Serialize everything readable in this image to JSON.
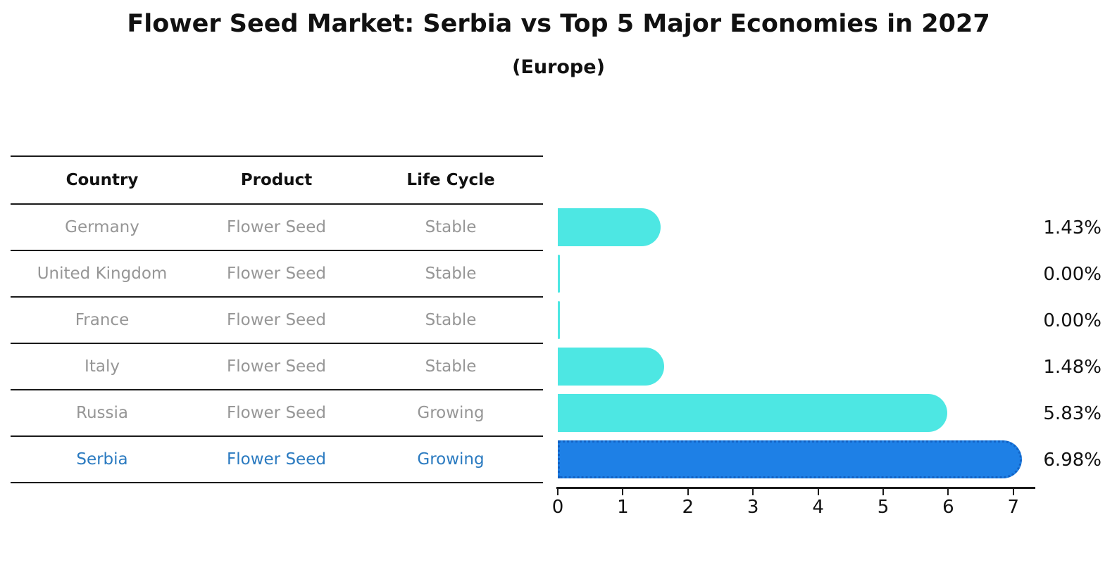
{
  "title": "Flower Seed Market: Serbia vs Top 5 Major Economies in 2027",
  "subtitle": "(Europe)",
  "table": {
    "headers": [
      "Country",
      "Product",
      "Life Cycle"
    ],
    "rows": [
      {
        "country": "Germany",
        "product": "Flower Seed",
        "life_cycle": "Stable",
        "highlight": false
      },
      {
        "country": "United Kingdom",
        "product": "Flower Seed",
        "life_cycle": "Stable",
        "highlight": false
      },
      {
        "country": "France",
        "product": "Flower Seed",
        "life_cycle": "Stable",
        "highlight": false
      },
      {
        "country": "Italy",
        "product": "Flower Seed",
        "life_cycle": "Stable",
        "highlight": false
      },
      {
        "country": "Russia",
        "product": "Flower Seed",
        "life_cycle": "Growing",
        "highlight": false
      },
      {
        "country": "Serbia",
        "product": "Flower Seed",
        "life_cycle": "Growing",
        "highlight": true
      }
    ]
  },
  "chart_data": {
    "type": "bar",
    "orientation": "horizontal",
    "title": "Flower Seed Market: Serbia vs Top 5 Major Economies in 2027",
    "subtitle": "(Europe)",
    "categories": [
      "Germany",
      "United Kingdom",
      "France",
      "Italy",
      "Russia",
      "Serbia"
    ],
    "values": [
      1.43,
      0.0,
      0.0,
      1.48,
      5.83,
      6.98
    ],
    "value_labels": [
      "1.43%",
      "0.00%",
      "0.00%",
      "1.48%",
      "5.83%",
      "6.98%"
    ],
    "xticks": [
      "0",
      "1",
      "2",
      "3",
      "4",
      "5",
      "6",
      "7"
    ],
    "xlim": [
      0,
      7.35
    ],
    "grid": false,
    "legend": false,
    "highlight_index": 5,
    "colors": {
      "bar": "#4DE7E3",
      "highlight_bar": "#1E80E6",
      "highlight_border": "#1262C4",
      "highlight_text": "#2A7AC0",
      "row_text": "#969696",
      "header_text": "#111111",
      "value_text": "#111111",
      "line": "#1a1a1a"
    }
  }
}
